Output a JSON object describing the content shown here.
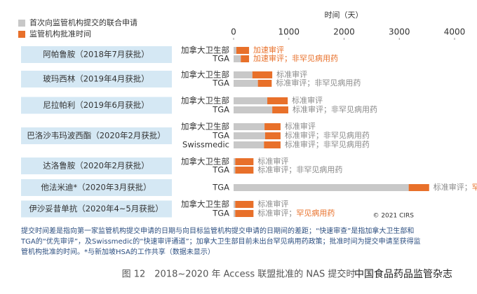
{
  "chart_data": {
    "type": "stacked-barh",
    "xlabel": "时间（天）",
    "xlim": [
      0,
      4000
    ],
    "xticks": [
      0,
      1000,
      2000,
      3000,
      4000
    ],
    "series": [
      {
        "name": "首次向监管机构提交的联合申请",
        "color": "#c8c8c8"
      },
      {
        "name": "监管机构批准时间",
        "color": "#e8702a"
      }
    ],
    "groups": [
      {
        "label": "阿帕鲁胺（2018年7月获批）",
        "rows": [
          {
            "agency": "加拿大卫生部",
            "values": [
              50,
              230
            ],
            "note": [
              {
                "text": "加速审评",
                "color": "#e8702a"
              }
            ]
          },
          {
            "agency": "TGA",
            "values": [
              130,
              150
            ],
            "note": [
              {
                "text": "加速审评；非罕见病用药",
                "color": "#e8702a"
              }
            ]
          }
        ]
      },
      {
        "label": "玻玛西林（2019年4月获批）",
        "rows": [
          {
            "agency": "加拿大卫生部",
            "values": [
              340,
              360
            ],
            "note": [
              {
                "text": "标准审评",
                "color": "#8a8a8a"
              }
            ]
          },
          {
            "agency": "TGA",
            "values": [
              440,
              250
            ],
            "note": [
              {
                "text": "标准审评；非罕见病用药",
                "color": "#8a8a8a"
              }
            ]
          }
        ]
      },
      {
        "label": "尼拉帕利（2019年6月获批）",
        "rows": [
          {
            "agency": "加拿大卫生部",
            "values": [
              610,
              370
            ],
            "note": [
              {
                "text": "标准审评",
                "color": "#8a8a8a"
              }
            ]
          },
          {
            "agency": "TGA",
            "values": [
              700,
              290
            ],
            "note": [
              {
                "text": "标准审评；非罕见病用药",
                "color": "#8a8a8a"
              }
            ]
          }
        ]
      },
      {
        "label": "巴洛沙韦玛波西酯（2020年2月获批）",
        "rows": [
          {
            "agency": "加拿大卫生部",
            "values": [
              560,
              290
            ],
            "note": [
              {
                "text": "标准审评",
                "color": "#8a8a8a"
              }
            ]
          },
          {
            "agency": "TGA",
            "values": [
              570,
              280
            ],
            "note": [
              {
                "text": "标准审评；非罕见病用药",
                "color": "#8a8a8a"
              }
            ]
          },
          {
            "agency": "Swissmedic",
            "values": [
              550,
              300
            ],
            "note": [
              {
                "text": "标准审评；非罕见病用药",
                "color": "#8a8a8a"
              }
            ]
          }
        ]
      },
      {
        "label": "达洛鲁胺（2020年2月获批）",
        "rows": [
          {
            "agency": "加拿大卫生部",
            "values": [
              30,
              330
            ],
            "note": [
              {
                "text": "标准审评",
                "color": "#8a8a8a"
              }
            ]
          },
          {
            "agency": "TGA",
            "values": [
              30,
              330
            ],
            "note": [
              {
                "text": "标准审评；非罕见病用药",
                "color": "#8a8a8a"
              }
            ]
          }
        ]
      },
      {
        "label": "他法米迪*（2020年3月获批）",
        "rows": [
          {
            "agency": "TGA",
            "values": [
              3170,
              370
            ],
            "note": [
              {
                "text": "标准审评；",
                "color": "#8a8a8a"
              },
              {
                "text": "罕见病用药",
                "color": "#e8702a"
              }
            ]
          }
        ]
      },
      {
        "label": "伊沙妥昔单抗（2020年4~5月获批）",
        "rows": [
          {
            "agency": "加拿大卫生部",
            "values": [
              30,
              330
            ],
            "note": [
              {
                "text": "标准审评",
                "color": "#8a8a8a"
              }
            ]
          },
          {
            "agency": "TGA",
            "values": [
              30,
              330
            ],
            "note": [
              {
                "text": "标准审评；",
                "color": "#8a8a8a"
              },
              {
                "text": "罕见病用药",
                "color": "#e8702a"
              }
            ]
          }
        ]
      }
    ],
    "copyright": "© 2021 CIRS",
    "footnote": [
      "提交时间差是指向第一家监管机构提交申请的日期与向目标监管机构提交申请的日期间的差距；“快速审查”是指加拿大卫生部和",
      "TGA的“优先审评”，及Swissmedic的“快速审评通道”；加拿大卫生部目前未出台罕见病用药政策；批准时间为提交申请至获得监",
      "管机构批准的时间。*与新加坡HSA的工作共享（数据未显示）"
    ],
    "caption": "图 12　2018~2020 年 Access 联盟批准的 NAS 提交时",
    "watermark": "中国食品药品监管杂志"
  }
}
